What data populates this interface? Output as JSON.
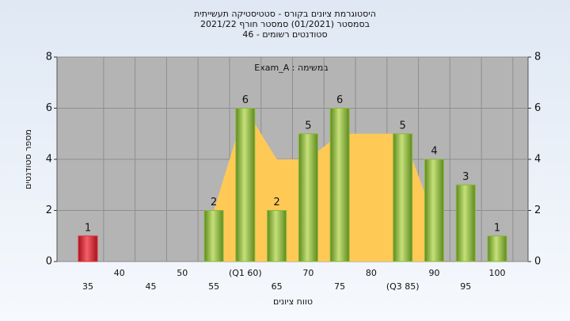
{
  "chart_data": {
    "type": "bar",
    "title": "היסטוגרמת ציונים בקורס - סטטיסטיקה תעשייתית",
    "subtitle": "בסמסטר  (01/2021)  סמסטר חורף 2021/22",
    "subtitle2": "סטודנטים רשומים - 46",
    "annotation": "Exam_A : במשימה",
    "y_label": "מספר סטודנטים",
    "x_label": "טווח ציונים",
    "categories": [
      "35",
      "40",
      "45",
      "50",
      "55",
      "(Q1 60)",
      "65",
      "70",
      "75",
      "80",
      "(Q3 85)",
      "90",
      "95",
      "100"
    ],
    "values": [
      1,
      0,
      0,
      0,
      2,
      6,
      2,
      5,
      6,
      0,
      5,
      4,
      3,
      1
    ],
    "colors": [
      "#e0303a",
      "#8db83c",
      "#8db83c",
      "#8db83c",
      "#8db83c",
      "#8db83c",
      "#8db83c",
      "#8db83c",
      "#8db83c",
      "#8db83c",
      "#8db83c",
      "#8db83c",
      "#8db83c",
      "#8db83c"
    ],
    "area": {
      "color": "#ffc955",
      "values": [
        null,
        null,
        null,
        null,
        2,
        6,
        4,
        4,
        5,
        5,
        5,
        1.7,
        null,
        null
      ]
    },
    "ylim": [
      0,
      8
    ],
    "yticks": [
      0,
      2,
      4,
      6,
      8
    ],
    "y2lim": [
      0,
      8
    ],
    "y2ticks": [
      0,
      2,
      4,
      6,
      8
    ],
    "grid": true
  }
}
